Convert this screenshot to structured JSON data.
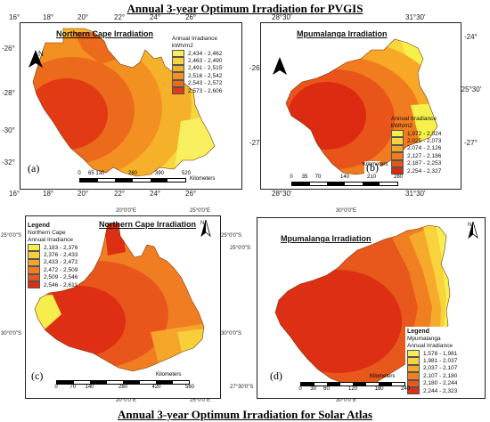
{
  "heading_top": "Annual 3-year Optimum Irradiation for PVGIS",
  "heading_bottom": "Annual 3-year Optimum Irradiation for Solar Atlas",
  "panel_a": {
    "title": "Northern Cape Irradiation",
    "letter": "(a)",
    "north_label": "N",
    "top_labels": [
      "16°",
      "18°",
      "20°",
      "22°",
      "24°",
      "26°"
    ],
    "bottom_labels": [
      "16°",
      "18°",
      "20°",
      "22°",
      "24°",
      "26°"
    ],
    "left_labels": [
      "-26°",
      "-28°",
      "-30°",
      "-32°"
    ],
    "legend_title_1": "Annual Irradiance",
    "legend_title_2": "kWh/m2",
    "legend": [
      {
        "label": "2,434 - 2,462",
        "color": "#f7ef5e"
      },
      {
        "label": "2,463 - 2,490",
        "color": "#f8d53e"
      },
      {
        "label": "2,491 - 2,515",
        "color": "#f6b12a"
      },
      {
        "label": "2,516 - 2,542",
        "color": "#f39022"
      },
      {
        "label": "2,543 - 2,572",
        "color": "#ec6a1c"
      },
      {
        "label": "2,573 - 2,606",
        "color": "#e13a14"
      }
    ],
    "scale_ticks": [
      "0",
      "65 130",
      "260",
      "390",
      "520"
    ],
    "scale_units": "Kilometers"
  },
  "panel_b": {
    "title": "Mpumalanga Irradiation",
    "letter": "(b)",
    "top_labels": [
      "28°30'",
      "31°30'"
    ],
    "bottom_labels": [
      "28°30'",
      "31°30'"
    ],
    "left_labels": [
      "-26°",
      "-27°"
    ],
    "right_labels": [
      "-24°",
      "-25°30'",
      "-27°"
    ],
    "legend_title_1": "Annual Irradiance",
    "legend_title_2": "kWh/m2",
    "legend": [
      {
        "label": "1,972 - 2,024",
        "color": "#f6f04a"
      },
      {
        "label": "2,025 - 2,073",
        "color": "#f8d53a"
      },
      {
        "label": "2,074 - 2,126",
        "color": "#f6a826"
      },
      {
        "label": "2,127 - 2,186",
        "color": "#f17b1f"
      },
      {
        "label": "2,187 - 2,253",
        "color": "#e85419"
      },
      {
        "label": "2,254 - 2,327",
        "color": "#dd2b12"
      }
    ],
    "scale_ticks": [
      "0",
      "35",
      "70",
      "140",
      "210",
      "280"
    ],
    "scale_units": "Kilometers"
  },
  "panel_c": {
    "title": "Northern Cape Irradiation",
    "letter": "(c)",
    "north_label": "N",
    "top_labels": [
      "20°0'0\"E",
      "25°0'0\"E"
    ],
    "bottom_labels": [
      "20°0'0\"E",
      "25°0'0\"E"
    ],
    "left_labels": [
      "25°0'0\"S",
      "30°0'0\"S"
    ],
    "right_labels": [
      "25°0'0\"S",
      "30°0'0\"S"
    ],
    "legend_heading": "Legend",
    "legend_title_1": "Northern Cape",
    "legend_title_2": "Annual Irradiance",
    "legend": [
      {
        "label": "2,183 - 2,376",
        "color": "#f6ee4c"
      },
      {
        "label": "2,376 - 2,433",
        "color": "#f8cf3a"
      },
      {
        "label": "2,433 - 2,472",
        "color": "#f5a62a"
      },
      {
        "label": "2,472 - 2,509",
        "color": "#f07d22"
      },
      {
        "label": "2,509 - 2,546",
        "color": "#e9561b"
      },
      {
        "label": "2,546 - 2,611",
        "color": "#de2e14"
      }
    ],
    "scale_ticks": [
      "0",
      "70",
      "140",
      "280",
      "420",
      "560"
    ],
    "scale_units": "Kilometers"
  },
  "panel_d": {
    "title": "Mpumalanga Irradiation",
    "letter": "(d)",
    "north_label": "N",
    "top_labels": [
      "30°0'0\"E"
    ],
    "bottom_labels": [
      "30°0'0\"E"
    ],
    "left_labels": [
      "25°0'0\"S",
      "27°30'0\"S"
    ],
    "legend_heading": "Legend",
    "legend_title_1": "Mpumalanga",
    "legend_title_2": "Annual Irradiance",
    "legend": [
      {
        "label": "1,578 - 1,981",
        "color": "#f7ef52"
      },
      {
        "label": "1,981 - 2,037",
        "color": "#f8d33c"
      },
      {
        "label": "2,037 - 2,107",
        "color": "#f5aa2b"
      },
      {
        "label": "2,107 - 2,180",
        "color": "#f07f22"
      },
      {
        "label": "2,180 - 2,244",
        "color": "#e8571b"
      },
      {
        "label": "2,244 - 2,323",
        "color": "#dc2f14"
      }
    ],
    "scale_ticks": [
      "0",
      "30",
      "60",
      "120",
      "180",
      "240"
    ],
    "scale_units": "Kilometers"
  }
}
